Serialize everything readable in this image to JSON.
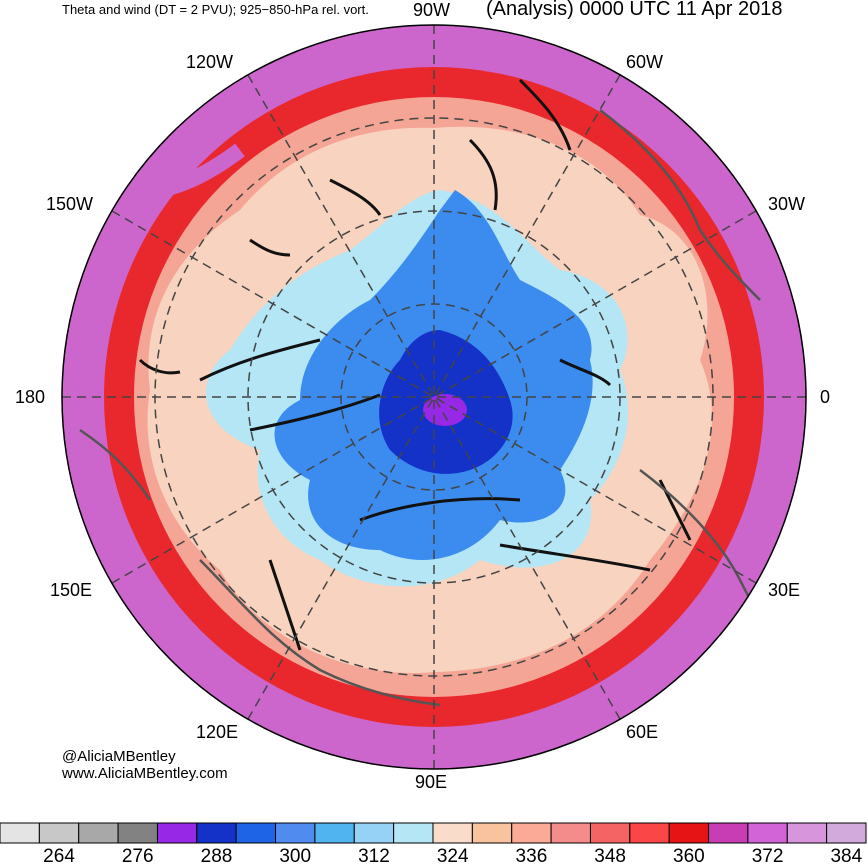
{
  "header": {
    "left": "Theta and wind (DT = 2 PVU); 925−850-hPa rel. vort.",
    "right": "(Analysis) 0000 UTC 11 Apr 2018"
  },
  "longitude_labels": {
    "lon_90w": "90W",
    "lon_120w": "120W",
    "lon_60w": "60W",
    "lon_150w": "150W",
    "lon_30w": "30W",
    "lon_180": "180",
    "lon_0": "0",
    "lon_150e": "150E",
    "lon_30e": "30E",
    "lon_120e": "120E",
    "lon_60e": "60E",
    "lon_90e": "90E"
  },
  "credits": {
    "handle": "@AliciaMBentley",
    "website": "www.AliciaMBentley.com"
  },
  "colorbar": {
    "tick_labels": [
      "264",
      "276",
      "288",
      "300",
      "312",
      "324",
      "336",
      "348",
      "360",
      "372",
      "384"
    ],
    "colors": [
      "#e4e4e4",
      "#c8c8c8",
      "#a8a8a8",
      "#828282",
      "#9628e6",
      "#1432c8",
      "#1e64e6",
      "#508cf0",
      "#50b4f0",
      "#96d2f5",
      "#b4e6f5",
      "#fadccb",
      "#fac3a0",
      "#faaa96",
      "#f58c8c",
      "#f56464",
      "#fa4646",
      "#e61414",
      "#c83cb4",
      "#d264d7",
      "#d796dc",
      "#d2aadc"
    ]
  },
  "map_colors": {
    "outer": "#cc66cc",
    "red": "#e8282c",
    "salmon": "#f5a596",
    "peach": "#f8d4c0",
    "lightblue": "#b4e6f5",
    "blue": "#3c8cf0",
    "darkblue": "#1432c8",
    "purple": "#9628e6"
  }
}
